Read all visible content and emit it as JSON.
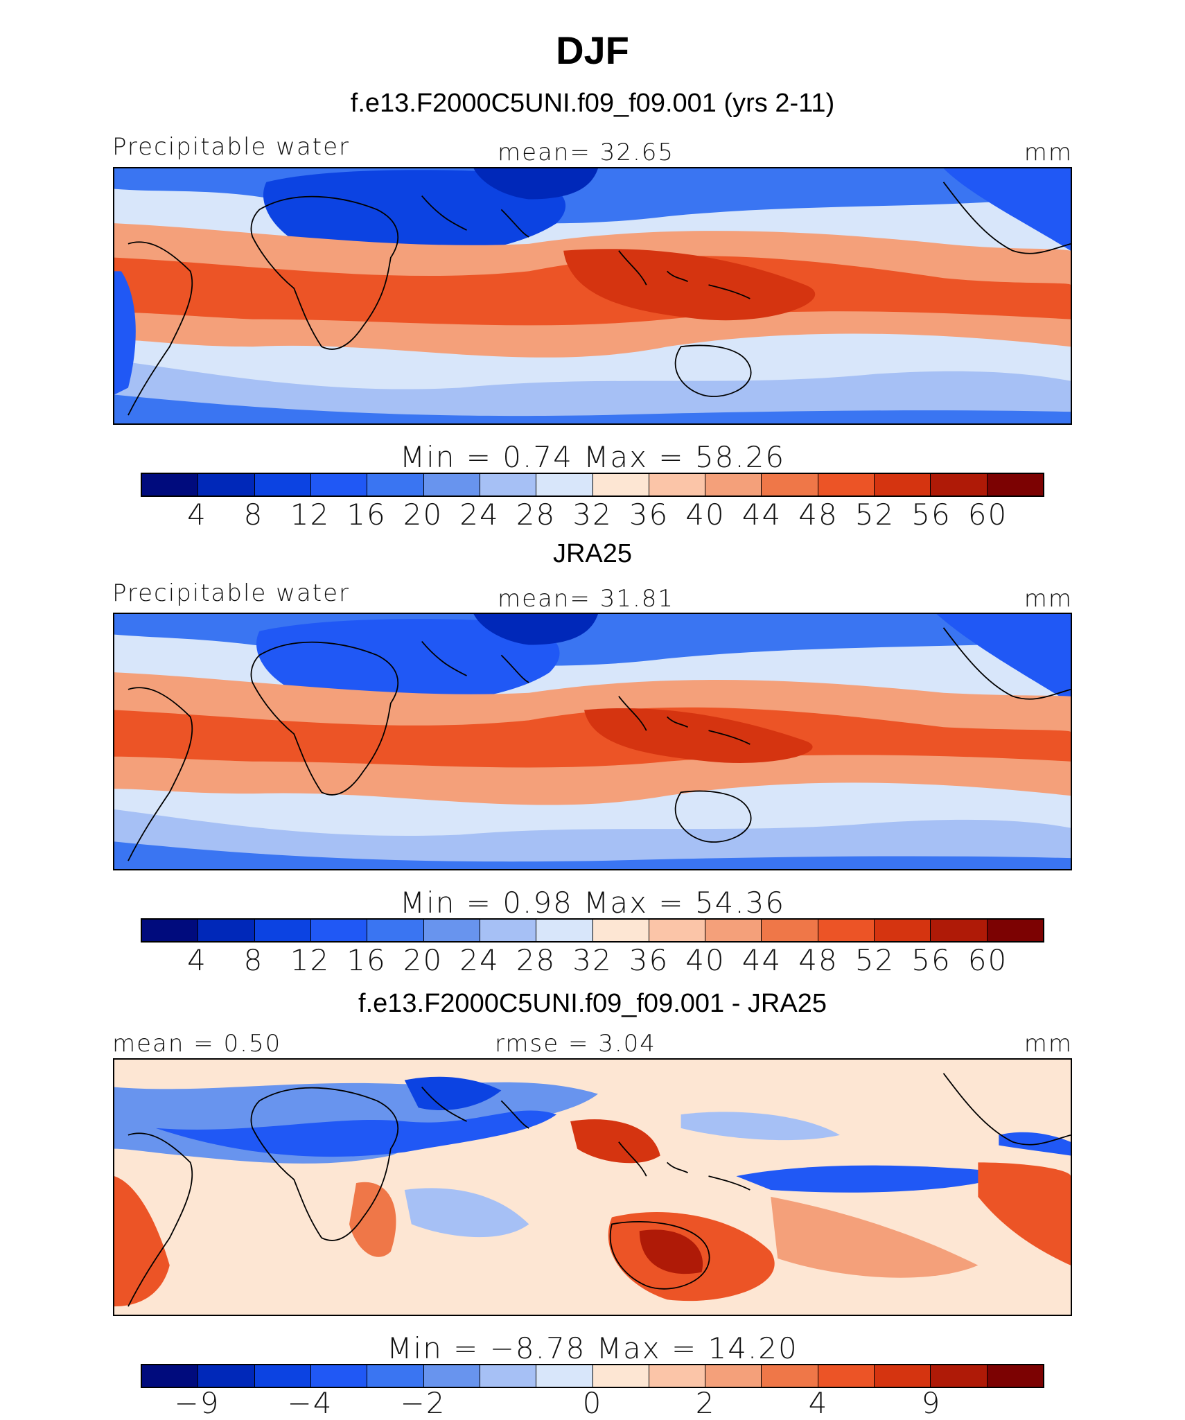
{
  "page": {
    "title": "DJF"
  },
  "panels": [
    {
      "title": "f.e13.F2000C5UNI.f09_f09.001 (yrs 2-11)",
      "left_label": "Precipitable water",
      "center_label": "mean=   32.65",
      "right_label": "mm",
      "minmax_label": "Min  =    0.74  Max  =   58.26",
      "colorbar": {
        "colors": [
          "#000b7d",
          "#0028b9",
          "#0c43e2",
          "#2058f5",
          "#3a75f2",
          "#6894ee",
          "#a6c0f5",
          "#d8e6fa",
          "#fde6d3",
          "#fbc5a8",
          "#f4a07a",
          "#ef7748",
          "#ec5426",
          "#d53410",
          "#af1a07",
          "#7c0202"
        ],
        "tick_labels": [
          "4",
          "8",
          "12",
          "16",
          "20",
          "24",
          "28",
          "32",
          "36",
          "40",
          "44",
          "48",
          "52",
          "56",
          "60"
        ]
      }
    },
    {
      "title": "JRA25",
      "left_label": "Precipitable water",
      "center_label": "mean=   31.81",
      "right_label": "mm",
      "minmax_label": "Min  =    0.98  Max  =   54.36",
      "colorbar": {
        "colors": [
          "#000b7d",
          "#0028b9",
          "#0c43e2",
          "#2058f5",
          "#3a75f2",
          "#6894ee",
          "#a6c0f5",
          "#d8e6fa",
          "#fde6d3",
          "#fbc5a8",
          "#f4a07a",
          "#ef7748",
          "#ec5426",
          "#d53410",
          "#af1a07",
          "#7c0202"
        ],
        "tick_labels": [
          "4",
          "8",
          "12",
          "16",
          "20",
          "24",
          "28",
          "32",
          "36",
          "40",
          "44",
          "48",
          "52",
          "56",
          "60"
        ]
      }
    },
    {
      "title": "f.e13.F2000C5UNI.f09_f09.001 - JRA25",
      "left_label": "mean =   0.50",
      "center_label": "rmse =   3.04",
      "right_label": "mm",
      "minmax_label": "Min  =   −8.78  Max  =   14.20",
      "colorbar": {
        "colors": [
          "#000b7d",
          "#0028b9",
          "#0c43e2",
          "#2058f5",
          "#3a75f2",
          "#6894ee",
          "#a6c0f5",
          "#d8e6fa",
          "#fde6d3",
          "#fbc5a8",
          "#f4a07a",
          "#ef7748",
          "#ec5426",
          "#d53410",
          "#af1a07",
          "#7c0202"
        ],
        "tick_labels": [
          "−9",
          "−4",
          "−2",
          "0",
          "2",
          "4",
          "9"
        ]
      }
    }
  ]
}
